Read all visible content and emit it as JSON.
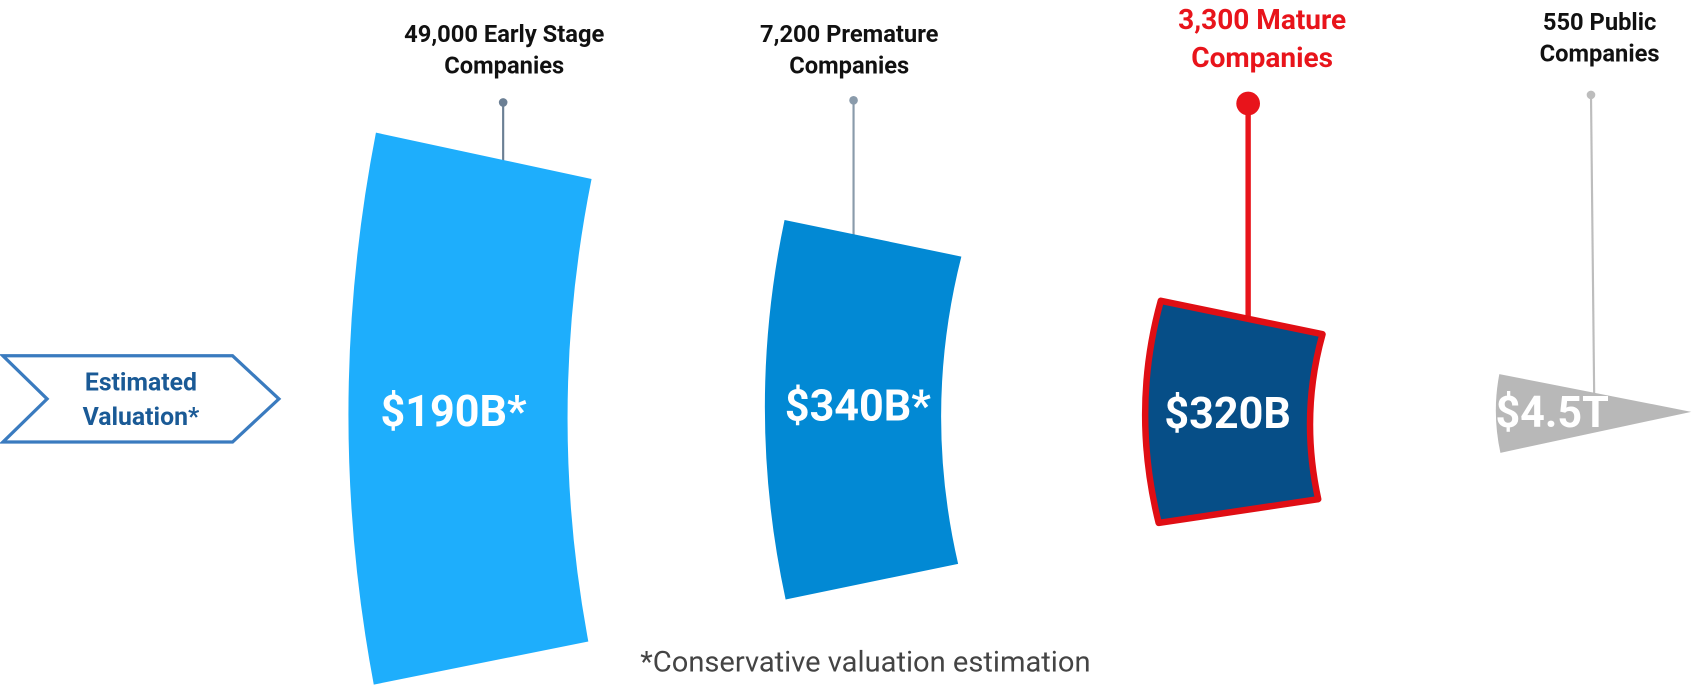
{
  "side_label": [
    "Estimated",
    "Valuation*"
  ],
  "columns": [
    {
      "label": [
        "49,000 Early Stage",
        "Companies"
      ],
      "value": "$190B*"
    },
    {
      "label": [
        "7,200 Premature",
        "Companies"
      ],
      "value": "$340B*"
    },
    {
      "label": [
        "3,300 Mature",
        "Companies"
      ],
      "value": "$320B"
    },
    {
      "label": [
        "550 Public",
        "Companies"
      ],
      "value": "$4.5T"
    }
  ],
  "footnote": "*Conservative valuation estimation"
}
